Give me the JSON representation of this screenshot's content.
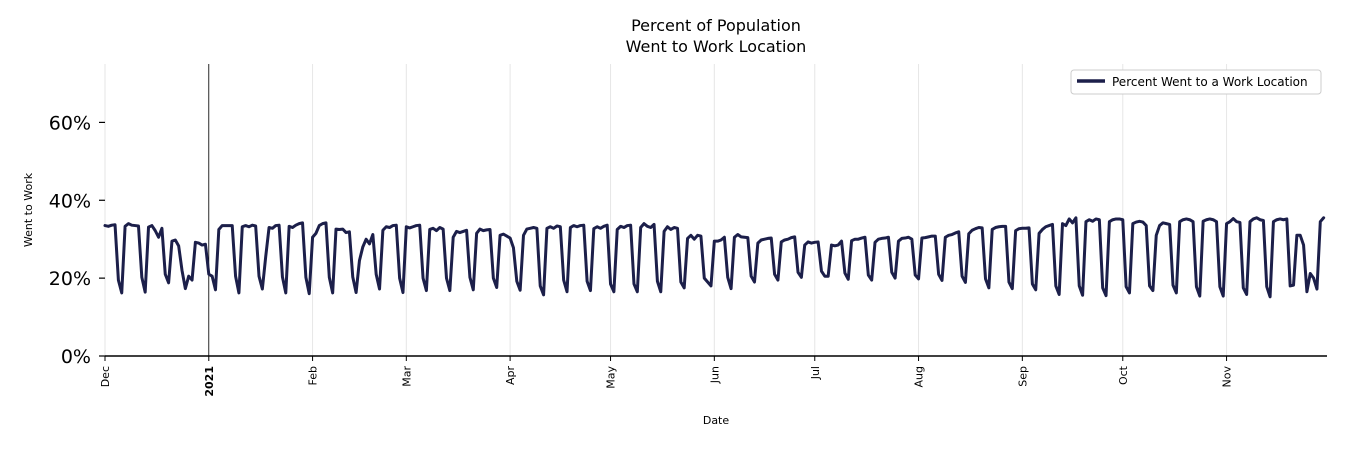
{
  "chart_data": {
    "type": "line",
    "title_lines": [
      "Percent of Population",
      "Went to Work Location"
    ],
    "xlabel": "Date",
    "ylabel": "Went to Work",
    "ylim": [
      0,
      75
    ],
    "yticks": [
      {
        "value": 0,
        "label": "0%"
      },
      {
        "value": 20,
        "label": "20%"
      },
      {
        "value": 40,
        "label": "40%"
      },
      {
        "value": 60,
        "label": "60%"
      }
    ],
    "xlim_days": [
      0,
      365
    ],
    "xticks": [
      {
        "day": 0,
        "label": "Dec",
        "bold": false
      },
      {
        "day": 31,
        "label": "2021",
        "bold": true
      },
      {
        "day": 62,
        "label": "Feb",
        "bold": false
      },
      {
        "day": 90,
        "label": "Mar",
        "bold": false
      },
      {
        "day": 121,
        "label": "Apr",
        "bold": false
      },
      {
        "day": 151,
        "label": "May",
        "bold": false
      },
      {
        "day": 182,
        "label": "Jun",
        "bold": false
      },
      {
        "day": 212,
        "label": "Jul",
        "bold": false
      },
      {
        "day": 243,
        "label": "Aug",
        "bold": false
      },
      {
        "day": 274,
        "label": "Sep",
        "bold": false
      },
      {
        "day": 304,
        "label": "Oct",
        "bold": false
      },
      {
        "day": 335,
        "label": "Nov",
        "bold": false
      }
    ],
    "year_marker_day": 31,
    "grid": "vertical",
    "legend": {
      "position": "top-right",
      "entries": [
        "Percent Went to a Work Location"
      ]
    },
    "series": [
      {
        "name": "Percent Went to a Work Location",
        "color": "#1c1f4a",
        "start_date": "2020-12-01",
        "values": [
          33.5,
          33.3,
          33.6,
          33.7,
          19.5,
          16.2,
          33.3,
          34.0,
          33.6,
          33.5,
          33.4,
          20.2,
          16.4,
          33.1,
          33.5,
          32.2,
          30.5,
          32.8,
          21.0,
          18.8,
          29.5,
          29.8,
          28.3,
          22.0,
          17.3,
          20.5,
          19.5,
          29.2,
          29.0,
          28.5,
          28.7,
          21.0,
          20.5,
          17.0,
          32.5,
          33.5,
          33.5,
          33.5,
          33.5,
          20.5,
          16.2,
          33.2,
          33.5,
          33.2,
          33.6,
          33.4,
          20.5,
          17.2,
          25.5,
          33.0,
          32.8,
          33.5,
          33.6,
          20.3,
          16.2,
          33.3,
          33.0,
          33.6,
          34.0,
          34.2,
          20.2,
          16.0,
          30.5,
          31.5,
          33.5,
          34.0,
          34.2,
          20.2,
          16.2,
          32.6,
          32.5,
          32.6,
          31.7,
          31.9,
          20.3,
          16.3,
          24.5,
          28.0,
          30.0,
          28.8,
          31.2,
          21.0,
          17.2,
          32.3,
          33.2,
          33.0,
          33.5,
          33.6,
          20.0,
          16.3,
          33.2,
          32.9,
          33.2,
          33.5,
          33.6,
          20.0,
          16.8,
          32.5,
          32.8,
          32.2,
          33.0,
          32.6,
          20.0,
          16.8,
          30.5,
          32.0,
          31.7,
          32.0,
          32.3,
          20.2,
          17.0,
          31.5,
          32.6,
          32.2,
          32.4,
          32.5,
          20.0,
          17.6,
          31.0,
          31.3,
          30.8,
          30.3,
          27.8,
          19.2,
          16.9,
          31.0,
          32.6,
          32.8,
          33.0,
          32.8,
          18.0,
          15.7,
          32.8,
          33.2,
          32.8,
          33.4,
          33.2,
          19.5,
          16.5,
          33.0,
          33.5,
          33.2,
          33.5,
          33.6,
          19.2,
          16.8,
          32.7,
          33.2,
          32.8,
          33.3,
          33.6,
          18.5,
          16.5,
          32.5,
          33.3,
          33.0,
          33.5,
          33.6,
          18.5,
          16.5,
          33.0,
          34.0,
          33.3,
          33.0,
          33.8,
          19.2,
          16.5,
          32.0,
          33.2,
          32.5,
          33.0,
          32.8,
          19.0,
          17.5,
          30.2,
          31.0,
          30.0,
          31.0,
          30.8,
          20.0,
          19.0,
          18.0,
          29.5,
          29.5,
          29.8,
          30.5,
          20.2,
          17.3,
          30.5,
          31.2,
          30.6,
          30.5,
          30.4,
          20.5,
          19.0,
          29.0,
          29.8,
          30.0,
          30.2,
          30.3,
          21.0,
          19.5,
          29.3,
          29.8,
          30.0,
          30.4,
          30.6,
          21.5,
          20.2,
          28.5,
          29.3,
          29.0,
          29.2,
          29.3,
          21.8,
          20.5,
          20.5,
          28.5,
          28.3,
          28.5,
          29.5,
          21.3,
          19.7,
          29.6,
          30.0,
          30.0,
          30.3,
          30.5,
          20.8,
          19.5,
          29.2,
          30.0,
          30.2,
          30.3,
          30.5,
          21.5,
          20.0,
          29.5,
          30.2,
          30.3,
          30.5,
          30.0,
          20.8,
          19.8,
          30.3,
          30.4,
          30.6,
          30.8,
          30.8,
          21.0,
          19.4,
          30.5,
          31.0,
          31.2,
          31.6,
          31.9,
          20.5,
          18.9,
          31.4,
          32.3,
          32.7,
          33.0,
          32.9,
          19.8,
          17.5,
          32.5,
          33.0,
          33.2,
          33.3,
          33.3,
          19.0,
          17.3,
          32.2,
          32.7,
          32.8,
          32.8,
          32.9,
          18.5,
          17.0,
          31.5,
          32.5,
          33.2,
          33.5,
          33.8,
          18.0,
          15.8,
          34.0,
          33.5,
          35.2,
          34.2,
          35.5,
          18.0,
          15.6,
          34.5,
          35.0,
          34.6,
          35.2,
          35.0,
          17.5,
          15.5,
          34.5,
          35.0,
          35.2,
          35.2,
          35.0,
          17.8,
          16.2,
          34.0,
          34.4,
          34.6,
          34.4,
          33.5,
          18.0,
          16.8,
          31.0,
          33.5,
          34.2,
          34.0,
          33.8,
          18.2,
          16.2,
          34.5,
          35.0,
          35.2,
          35.0,
          34.5,
          17.8,
          15.4,
          34.6,
          35.0,
          35.2,
          35.0,
          34.5,
          17.8,
          15.4,
          34.0,
          34.5,
          35.3,
          34.5,
          34.3,
          17.5,
          15.8,
          34.5,
          35.2,
          35.5,
          35.0,
          34.8,
          17.8,
          15.2,
          34.5,
          35.0,
          35.2,
          35.0,
          35.2,
          18.0,
          18.2,
          31.0,
          31.0,
          28.5,
          16.5,
          21.2,
          20.0,
          17.2,
          34.5,
          35.5
        ]
      }
    ]
  }
}
